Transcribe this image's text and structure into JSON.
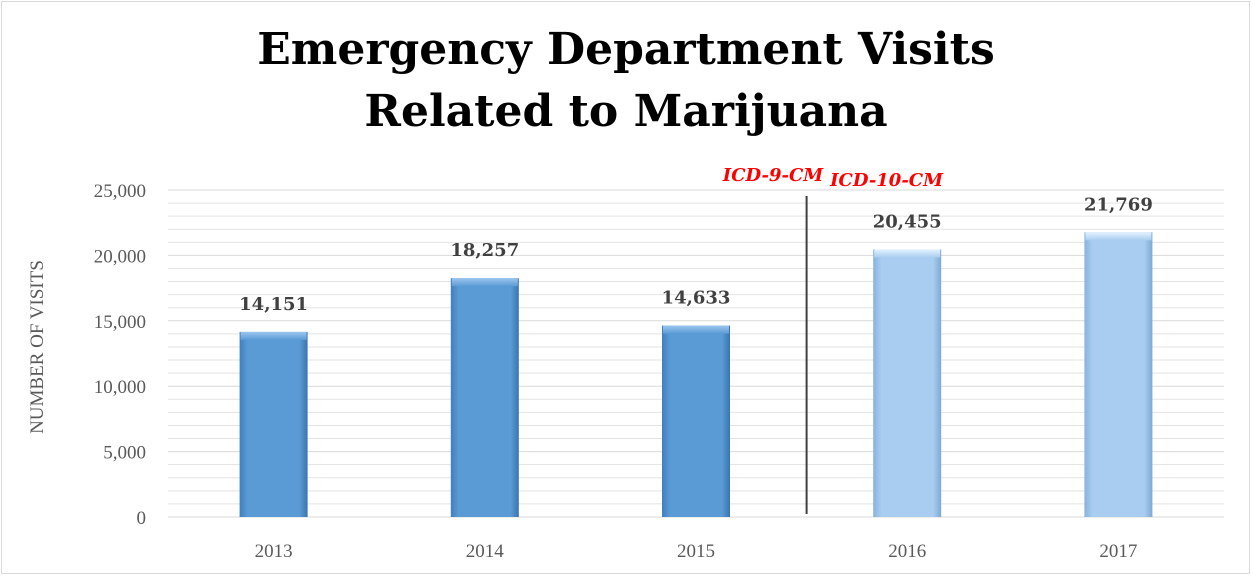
{
  "chart_data": {
    "type": "bar",
    "title_lines": [
      "Emergency Department Visits",
      "Related to Marijuana"
    ],
    "ylabel": "NUMBER OF VISITS",
    "xlabel": "",
    "categories": [
      "2013",
      "2014",
      "2015",
      "2016",
      "2017"
    ],
    "values": [
      14151,
      18257,
      14633,
      20455,
      21769
    ],
    "value_labels": [
      "14,151",
      "18,257",
      "14,633",
      "20,455",
      "21,769"
    ],
    "ylim": [
      0,
      25000
    ],
    "y_ticks": [
      0,
      5000,
      10000,
      15000,
      20000,
      25000
    ],
    "y_tick_labels": [
      "0",
      "5,000",
      "10,000",
      "15,000",
      "20,000",
      "25,000"
    ],
    "grid": true,
    "annotations": [
      {
        "text": "ICD-9-CM",
        "applies_to": [
          "2013",
          "2014",
          "2015"
        ]
      },
      {
        "text": "ICD-10-CM",
        "applies_to": [
          "2016",
          "2017"
        ]
      }
    ],
    "divider_between": [
      "2015",
      "2016"
    ],
    "colors": {
      "icd9_bar": "#5b9bd5",
      "icd10_bar": "#a9cdf0",
      "annotation": "#ff0000",
      "divider": "#404040",
      "grid": "#e3e3e3"
    }
  }
}
